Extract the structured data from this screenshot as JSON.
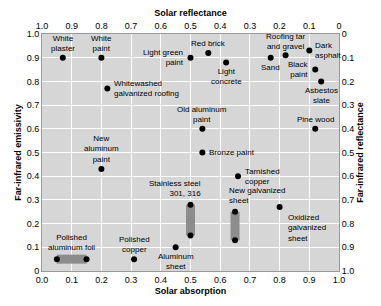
{
  "chart_data": {
    "type": "scatter",
    "x_label": "Solar absorption",
    "y_label": "Far-infrared emissivity",
    "x2_label": "Solar reflectance",
    "y2_label": "Far-infrared reflectance",
    "xlim": [
      0,
      1
    ],
    "xticks": [
      {
        "value": 0,
        "label": "0.0"
      },
      0.1,
      0.2,
      0.3,
      0.4,
      0.5,
      0.6,
      0.7,
      0.8,
      0.9,
      {
        "value": 1,
        "label": "1.0"
      }
    ],
    "ylim": [
      0,
      1
    ],
    "yticks": [
      0,
      0.1,
      0.2,
      0.3,
      0.4,
      0.5,
      0.6,
      0.7,
      0.8,
      0.9,
      {
        "value": 1,
        "label": "1.0"
      }
    ],
    "x2lim": [
      1,
      0
    ],
    "x2ticks": [
      {
        "value": 1,
        "label": "1.0"
      },
      0.9,
      0.8,
      0.7,
      0.6,
      0.5,
      0.4,
      0.3,
      0.2,
      0.1,
      0
    ],
    "y2lim": [
      1,
      0
    ],
    "y2ticks": [
      0,
      0.1,
      0.2,
      0.3,
      0.4,
      0.5,
      0.6,
      0.7,
      0.8,
      0.9,
      {
        "value": 1,
        "label": "1.0"
      }
    ],
    "grid": true,
    "color": "#000000",
    "points": [
      {
        "label": "White\nplaster",
        "x": 0.07,
        "y": 0.9
      },
      {
        "label": "White\npaint",
        "x": 0.2,
        "y": 0.9
      },
      {
        "label": "Whitewashed\ngalvanized roofing",
        "x": 0.22,
        "y": 0.77
      },
      {
        "label": "Light green\npaint",
        "x": 0.5,
        "y": 0.9
      },
      {
        "label": "Red brick",
        "x": 0.56,
        "y": 0.92
      },
      {
        "label": "Light\nconcrete",
        "x": 0.62,
        "y": 0.88
      },
      {
        "label": "Sand",
        "x": 0.77,
        "y": 0.9
      },
      {
        "label": "Roofing tar\nand gravel",
        "x": 0.82,
        "y": 0.91
      },
      {
        "label": "Dark\nasphalt",
        "x": 0.9,
        "y": 0.93
      },
      {
        "label": "Black\npaint",
        "x": 0.92,
        "y": 0.85
      },
      {
        "label": "Asbestos\nslate",
        "x": 0.94,
        "y": 0.8
      },
      {
        "label": "Old aluminum\npaint",
        "x": 0.54,
        "y": 0.6
      },
      {
        "label": "Bronze paint",
        "x": 0.54,
        "y": 0.5
      },
      {
        "label": "New\naluminum\npaint",
        "x": 0.2,
        "y": 0.43
      },
      {
        "label": "Pine wood",
        "x": 0.92,
        "y": 0.6
      },
      {
        "label": "Tarnished\ncopper",
        "x": 0.66,
        "y": 0.4
      },
      {
        "label": "Oxidized\ngalvanized\nsheet",
        "x": 0.8,
        "y": 0.27
      },
      {
        "label": "Polished\ncopper",
        "x": 0.31,
        "y": 0.05
      },
      {
        "label": "Aluminum\nsheet",
        "x": 0.45,
        "y": 0.1
      }
    ],
    "ranges": [
      {
        "label": "Polished\naluminum foil",
        "x": [
          0.05,
          0.15
        ],
        "y": [
          0.05,
          0.05
        ],
        "color": "#8c8c8c"
      },
      {
        "label": "Stainless steel\n301, 316",
        "x": [
          0.5,
          0.5
        ],
        "y": [
          0.15,
          0.28
        ],
        "color": "#8c8c8c"
      },
      {
        "label": "New galvanized\nsheet",
        "x": [
          0.65,
          0.65
        ],
        "y": [
          0.13,
          0.25
        ],
        "color": "#8c8c8c"
      }
    ]
  }
}
